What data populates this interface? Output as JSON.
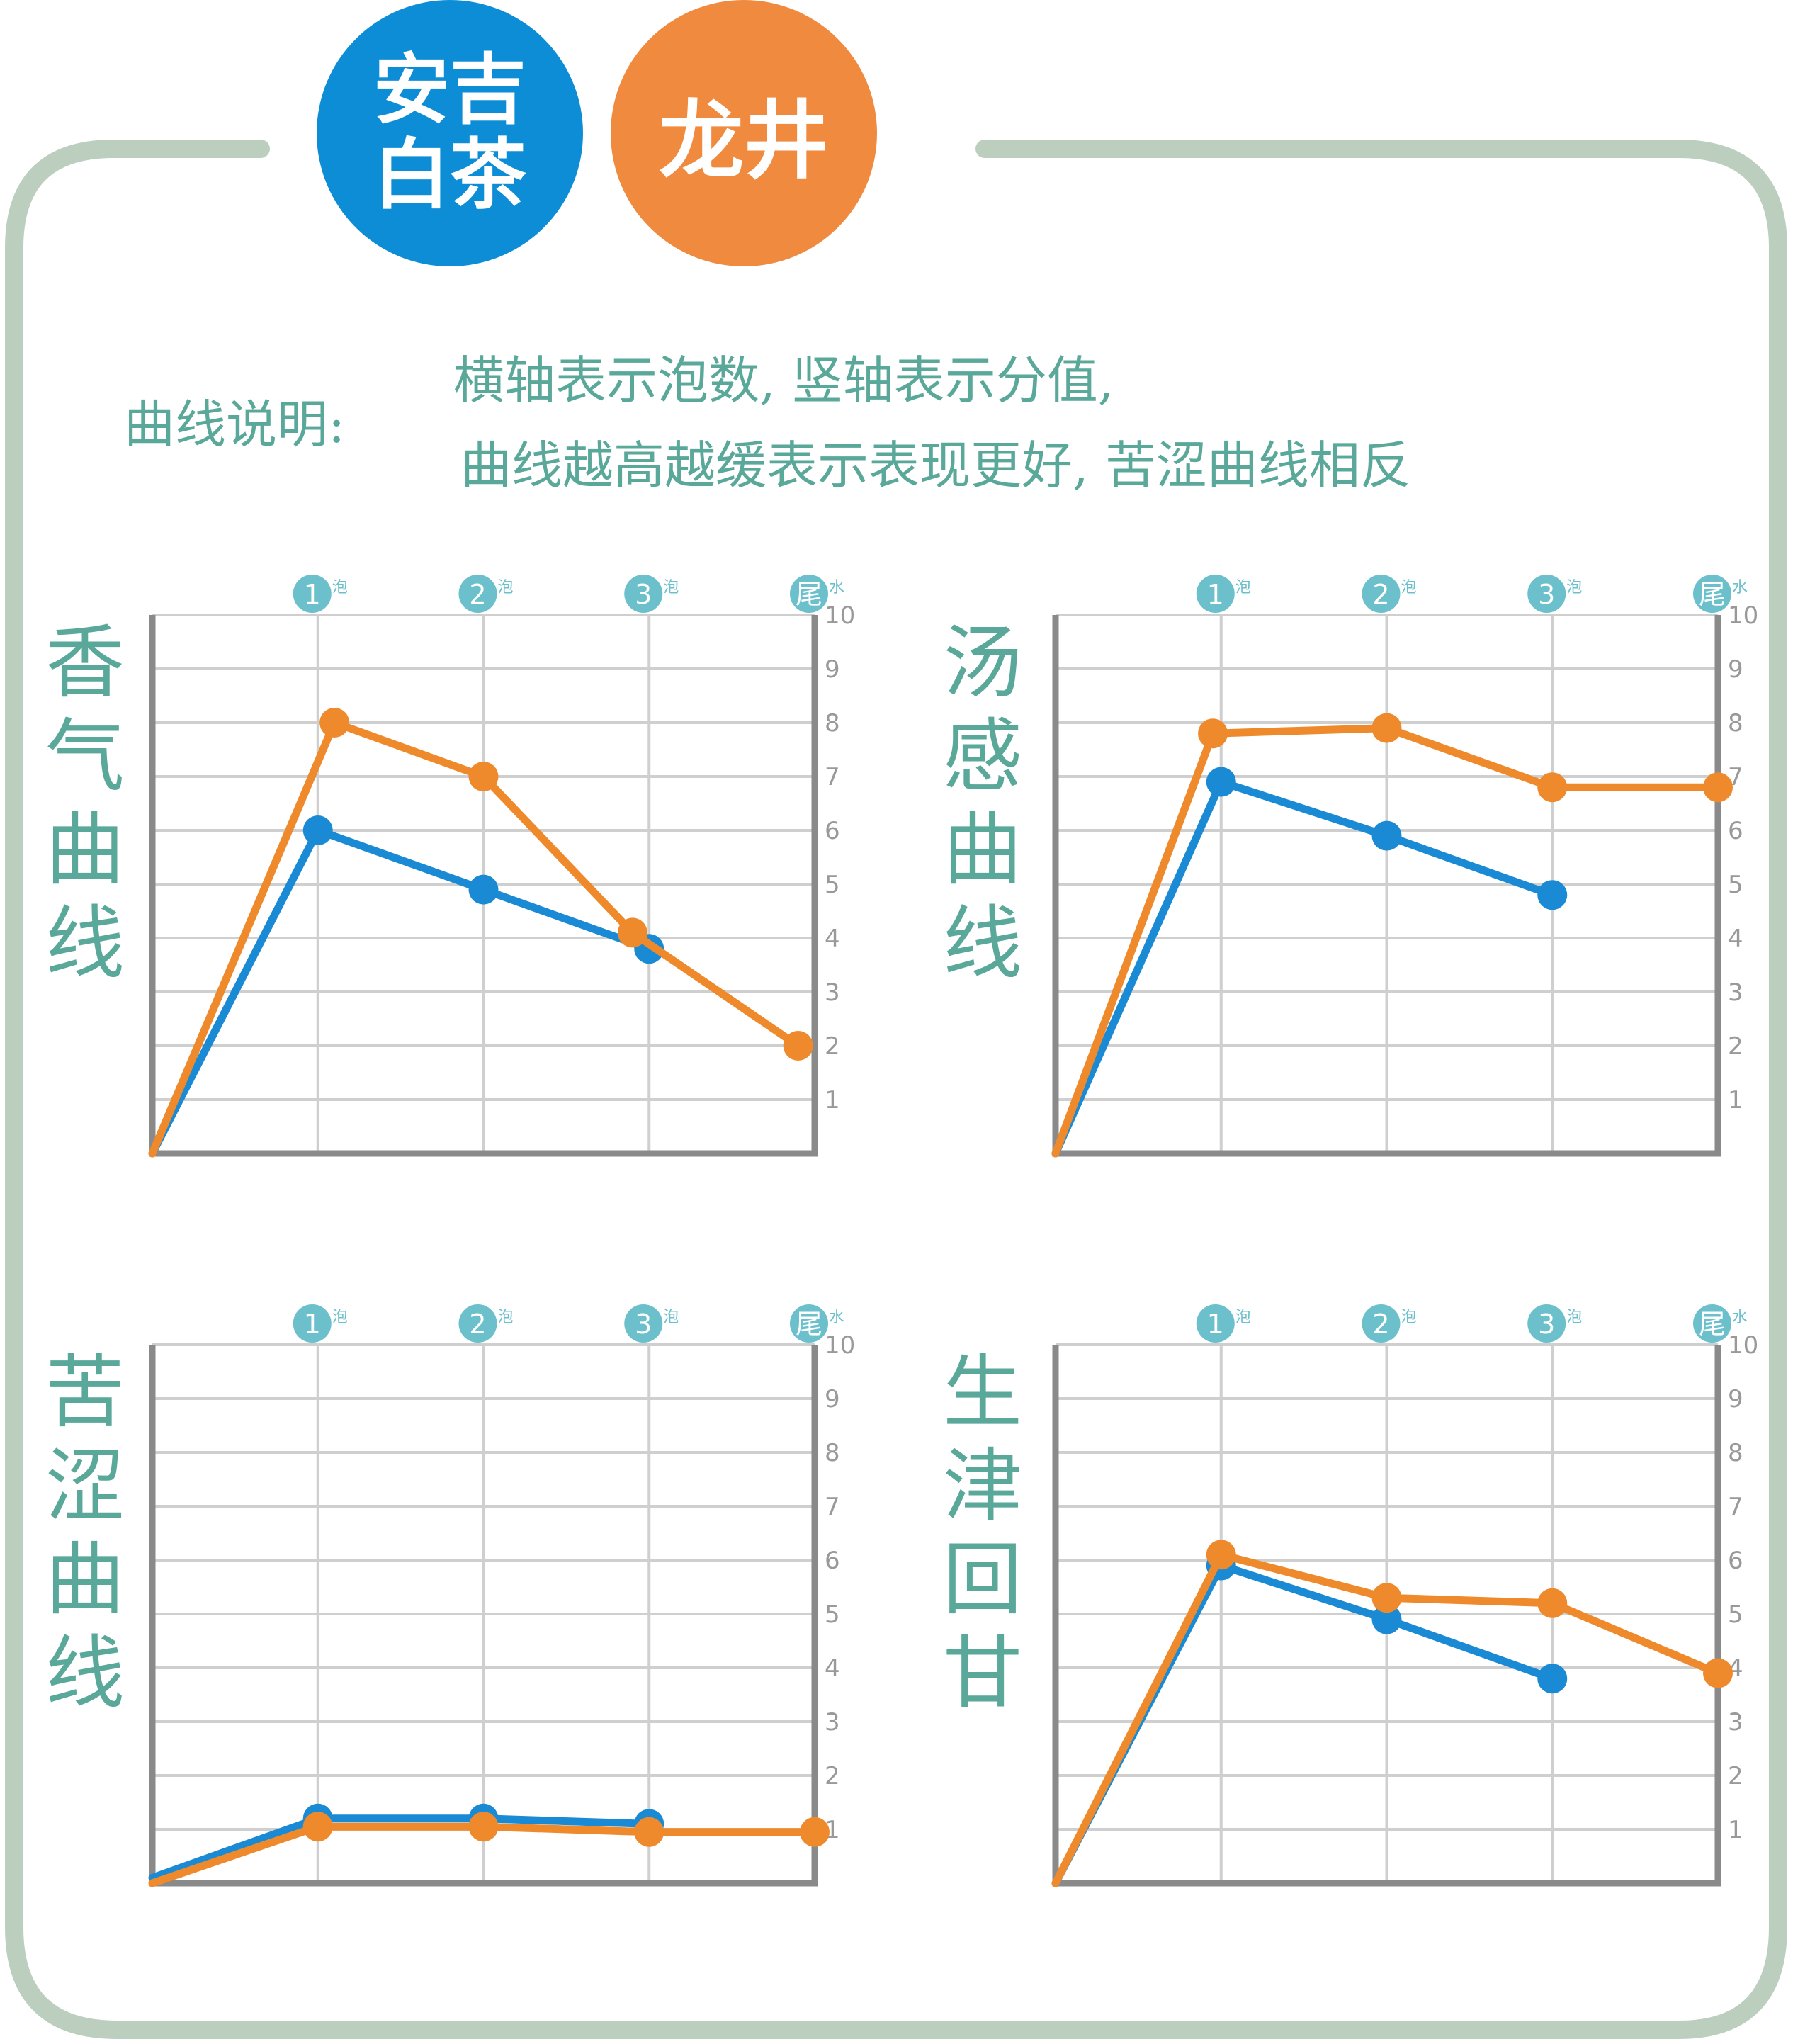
{
  "legend": [
    {
      "label": "安吉白茶",
      "color": "#0c8dd6"
    },
    {
      "label": "龙井",
      "color": "#ef8a3f"
    }
  ],
  "note": {
    "label": "曲线说明:",
    "line1": "横轴表示泡数, 竖轴表示分值,",
    "line2": "曲线越高越缓表示表现更好, 苦涩曲线相反"
  },
  "colors": {
    "frame": "#bccfbf",
    "grid": "#cfcfcf",
    "axis": "#8a8a8a",
    "tick": "#6bc0cc",
    "title": "#5aa89a",
    "anji": "#1a8ad4",
    "longjing": "#ef8a2c"
  },
  "chart_data": [
    {
      "type": "line",
      "title": "香气曲线",
      "x": [
        "1泡",
        "2泡",
        "3泡",
        "尾水"
      ],
      "x_ticks": [
        {
          "num": "1",
          "suffix": "泡"
        },
        {
          "num": "2",
          "suffix": "泡"
        },
        {
          "num": "3",
          "suffix": "泡"
        },
        {
          "num": "尾",
          "suffix": "水"
        }
      ],
      "ylim": [
        0,
        10
      ],
      "y_ticks": [
        "1",
        "2",
        "3",
        "4",
        "5",
        "6",
        "7",
        "8",
        "9",
        "10"
      ],
      "series": [
        {
          "name": "安吉白茶",
          "color": "#1a8ad4",
          "points": [
            [
              0,
              0
            ],
            [
              1,
              6
            ],
            [
              2,
              4.9
            ],
            [
              3,
              3.8
            ]
          ]
        },
        {
          "name": "龙井",
          "color": "#ef8a2c",
          "points": [
            [
              0,
              0
            ],
            [
              1.1,
              8
            ],
            [
              2,
              7
            ],
            [
              2.9,
              4.1
            ],
            [
              3.9,
              2
            ]
          ]
        }
      ]
    },
    {
      "type": "line",
      "title": "汤感曲线",
      "x": [
        "1泡",
        "2泡",
        "3泡",
        "尾水"
      ],
      "x_ticks": [
        {
          "num": "1",
          "suffix": "泡"
        },
        {
          "num": "2",
          "suffix": "泡"
        },
        {
          "num": "3",
          "suffix": "泡"
        },
        {
          "num": "尾",
          "suffix": "水"
        }
      ],
      "ylim": [
        0,
        10
      ],
      "y_ticks": [
        "1",
        "2",
        "3",
        "4",
        "5",
        "6",
        "7",
        "8",
        "9",
        "10"
      ],
      "series": [
        {
          "name": "安吉白茶",
          "color": "#1a8ad4",
          "points": [
            [
              0,
              0
            ],
            [
              1,
              6.9
            ],
            [
              2,
              5.9
            ],
            [
              3,
              4.8
            ]
          ]
        },
        {
          "name": "龙井",
          "color": "#ef8a2c",
          "points": [
            [
              0,
              0
            ],
            [
              0.95,
              7.8
            ],
            [
              2,
              7.9
            ],
            [
              3,
              6.8
            ],
            [
              4,
              6.8
            ]
          ]
        }
      ]
    },
    {
      "type": "line",
      "title": "苦涩曲线",
      "x": [
        "1泡",
        "2泡",
        "3泡",
        "尾水"
      ],
      "x_ticks": [
        {
          "num": "1",
          "suffix": "泡"
        },
        {
          "num": "2",
          "suffix": "泡"
        },
        {
          "num": "3",
          "suffix": "泡"
        },
        {
          "num": "尾",
          "suffix": "水"
        }
      ],
      "ylim": [
        0,
        10
      ],
      "y_ticks": [
        "1",
        "2",
        "3",
        "4",
        "5",
        "6",
        "7",
        "8",
        "9",
        "10"
      ],
      "series": [
        {
          "name": "安吉白茶",
          "color": "#1a8ad4",
          "points": [
            [
              0,
              0.1
            ],
            [
              1,
              1.2
            ],
            [
              2,
              1.2
            ],
            [
              3,
              1.1
            ]
          ]
        },
        {
          "name": "龙井",
          "color": "#ef8a2c",
          "points": [
            [
              0,
              0
            ],
            [
              1,
              1.05
            ],
            [
              2,
              1.05
            ],
            [
              3,
              0.95
            ],
            [
              4,
              0.95
            ]
          ]
        }
      ]
    },
    {
      "type": "line",
      "title": "生津回甘",
      "x": [
        "1泡",
        "2泡",
        "3泡",
        "尾水"
      ],
      "x_ticks": [
        {
          "num": "1",
          "suffix": "泡"
        },
        {
          "num": "2",
          "suffix": "泡"
        },
        {
          "num": "3",
          "suffix": "泡"
        },
        {
          "num": "尾",
          "suffix": "水"
        }
      ],
      "ylim": [
        0,
        10
      ],
      "y_ticks": [
        "1",
        "2",
        "3",
        "4",
        "5",
        "6",
        "7",
        "8",
        "9",
        "10"
      ],
      "series": [
        {
          "name": "安吉白茶",
          "color": "#1a8ad4",
          "points": [
            [
              0,
              0
            ],
            [
              1,
              5.9
            ],
            [
              2,
              4.9
            ],
            [
              3,
              3.8
            ]
          ]
        },
        {
          "name": "龙井",
          "color": "#ef8a2c",
          "points": [
            [
              0,
              0
            ],
            [
              1,
              6.1
            ],
            [
              2,
              5.3
            ],
            [
              3,
              5.2
            ],
            [
              4,
              3.9
            ]
          ]
        }
      ]
    }
  ]
}
